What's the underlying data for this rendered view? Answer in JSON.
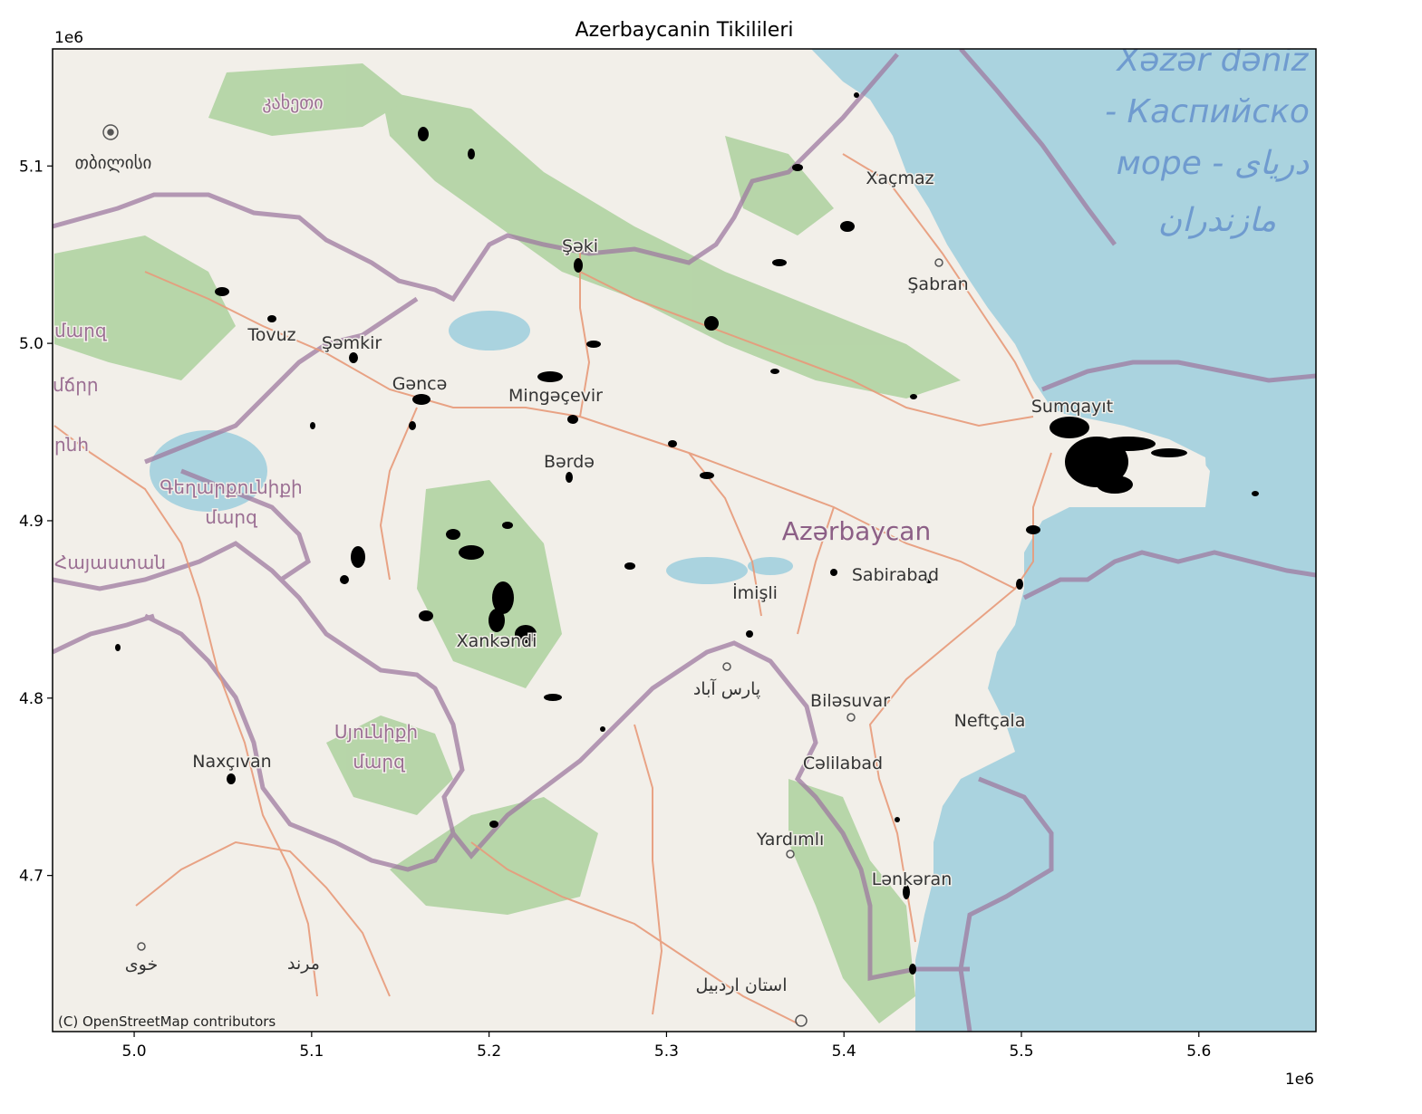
{
  "title": "Azerbaycanin Tikilileri",
  "attribution": "(C) OpenStreetMap contributors",
  "x_axis": {
    "offset_label": "1e6",
    "ticks": [
      {
        "value": 5.0,
        "label": "5.0"
      },
      {
        "value": 5.1,
        "label": "5.1"
      },
      {
        "value": 5.2,
        "label": "5.2"
      },
      {
        "value": 5.3,
        "label": "5.3"
      },
      {
        "value": 5.4,
        "label": "5.4"
      },
      {
        "value": 5.5,
        "label": "5.5"
      },
      {
        "value": 5.6,
        "label": "5.6"
      }
    ],
    "range": [
      4.954,
      5.666
    ]
  },
  "y_axis": {
    "offset_label": "1e6",
    "ticks": [
      {
        "value": 4.7,
        "label": "4.7"
      },
      {
        "value": 4.8,
        "label": "4.8"
      },
      {
        "value": 4.9,
        "label": "4.9"
      },
      {
        "value": 5.0,
        "label": "5.0"
      },
      {
        "value": 5.1,
        "label": "5.1"
      }
    ],
    "range": [
      4.612,
      5.166
    ]
  },
  "map": {
    "country_label": "Azərbaycan",
    "sea_label_lines": [
      "Xəzər dəniz",
      "- Каспийско",
      "море - دریای",
      "مازندران"
    ],
    "places": [
      "Xaçmaz",
      "Şabran",
      "Şəki",
      "Sumqayıt",
      "Tovuz",
      "Şəmkir",
      "Gəncə",
      "Mingəçevir",
      "Bərdə",
      "Sabirabad",
      "İmişli",
      "Xankəndi",
      "Biləsuvar",
      "Neftçala",
      "Naxçıvan",
      "Cəlilabad",
      "Yardımlı",
      "Lənkəran",
      "پارس آباد",
      "خوی",
      "مرند",
      "استان اردبیل",
      "თბილისი",
      "კახეთი"
    ],
    "regions": [
      "Գեղարքունիքի",
      "մարզ",
      "Սյունիքի",
      "մարզ",
      "Հայաստան",
      "մարզ",
      "մճրր",
      "րնհ"
    ],
    "colors": {
      "land": "#f2efe9",
      "water": "#aad3df",
      "forest": "#add19e",
      "border": "#9e7aa0",
      "road": "#e89a7a",
      "building": "#000000"
    }
  }
}
